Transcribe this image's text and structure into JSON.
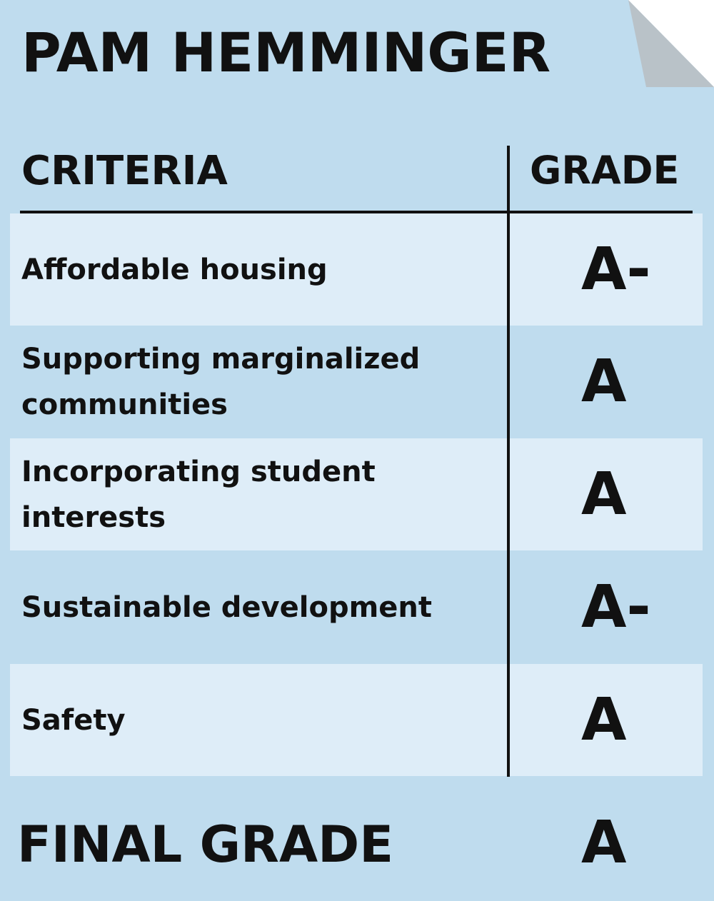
{
  "name": "PAM HEMMINGER",
  "headers": {
    "criteria": "CRITERIA",
    "grade": "GRADE"
  },
  "rows": [
    {
      "criteria": "Affordable housing",
      "grade": "A-"
    },
    {
      "criteria": "Supporting marginalized communities",
      "grade": "A"
    },
    {
      "criteria": "Incorporating student interests",
      "grade": "A"
    },
    {
      "criteria": "Sustainable development",
      "grade": "A-"
    },
    {
      "criteria": "Safety",
      "grade": "A"
    }
  ],
  "final": {
    "label": "FINAL GRADE",
    "grade": "A"
  },
  "colors": {
    "background": "#bfdcee",
    "row_light": "#deedf8",
    "fold": "#b9c2c8",
    "text": "#111111"
  }
}
